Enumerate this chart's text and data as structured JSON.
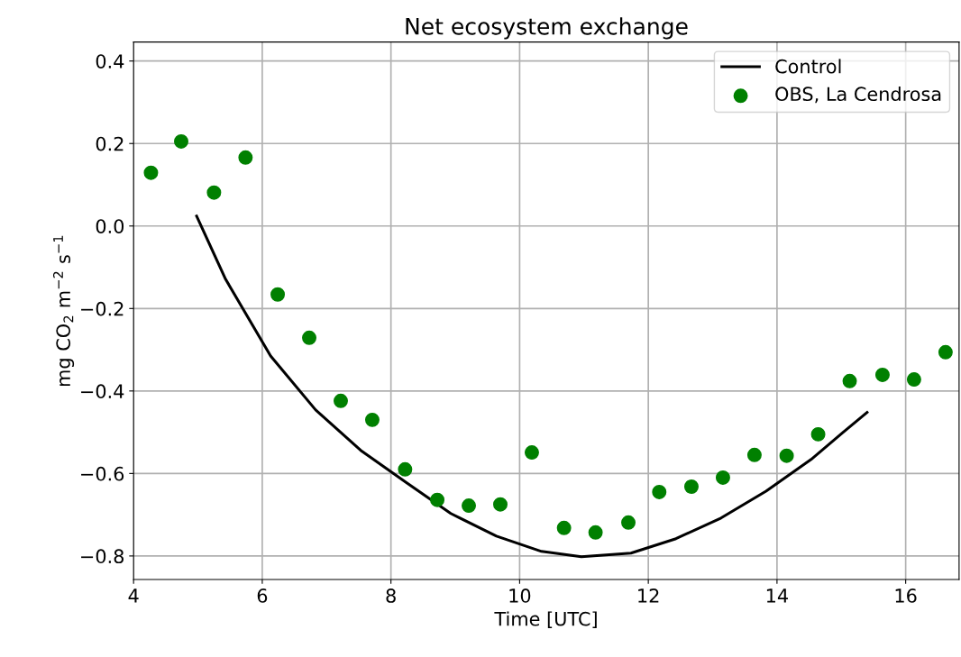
{
  "chart_data": {
    "type": "line",
    "title": "Net ecosystem exchange",
    "xlabel": "Time [UTC]",
    "ylabel": "mg CO$_{2}$ m$^{−2}$ s$^{−1}$",
    "xlim": [
      4,
      16.83
    ],
    "xticks": [
      4,
      6,
      8,
      10,
      12,
      14,
      16
    ],
    "ylim": [
      -0.857,
      0.446
    ],
    "yticks": [
      {
        "value": -0.8,
        "label": "−0.8"
      },
      {
        "value": -0.6,
        "label": "−0.6"
      },
      {
        "value": -0.4,
        "label": "−0.4"
      },
      {
        "value": -0.2,
        "label": "−0.2"
      },
      {
        "value": 0.0,
        "label": "0.0"
      },
      {
        "value": 0.2,
        "label": "0.2"
      },
      {
        "value": 0.4,
        "label": "0.4"
      }
    ],
    "grid": true,
    "legend": "top right",
    "series": [
      {
        "name": "Control",
        "color": "#000000",
        "x": [
          4.98,
          5.43,
          6.13,
          6.83,
          7.53,
          8.23,
          8.93,
          9.64,
          10.34,
          10.96,
          11.73,
          12.43,
          13.13,
          13.83,
          14.53,
          15.02,
          15.4
        ],
        "values": [
          0.024,
          -0.129,
          -0.315,
          -0.446,
          -0.544,
          -0.621,
          -0.697,
          -0.752,
          -0.789,
          -0.802,
          -0.793,
          -0.758,
          -0.708,
          -0.643,
          -0.566,
          -0.501,
          -0.452
        ]
      },
      {
        "name": "OBS, La Cendrosa",
        "type": "scatter",
        "color": "#008000",
        "marker": "circle",
        "x": [
          4.27,
          4.74,
          5.25,
          5.74,
          6.24,
          6.73,
          7.22,
          7.71,
          8.22,
          8.72,
          9.21,
          9.7,
          10.19,
          10.69,
          11.18,
          11.69,
          12.17,
          12.67,
          13.16,
          13.65,
          14.15,
          14.64,
          15.13,
          15.64,
          16.13,
          16.62
        ],
        "values": [
          0.129,
          0.205,
          0.081,
          0.166,
          -0.166,
          -0.271,
          -0.424,
          -0.47,
          -0.59,
          -0.664,
          -0.678,
          -0.675,
          -0.549,
          -0.732,
          -0.743,
          -0.719,
          -0.645,
          -0.632,
          -0.61,
          -0.555,
          -0.557,
          -0.505,
          -0.376,
          -0.361,
          -0.372,
          -0.306
        ]
      }
    ]
  }
}
